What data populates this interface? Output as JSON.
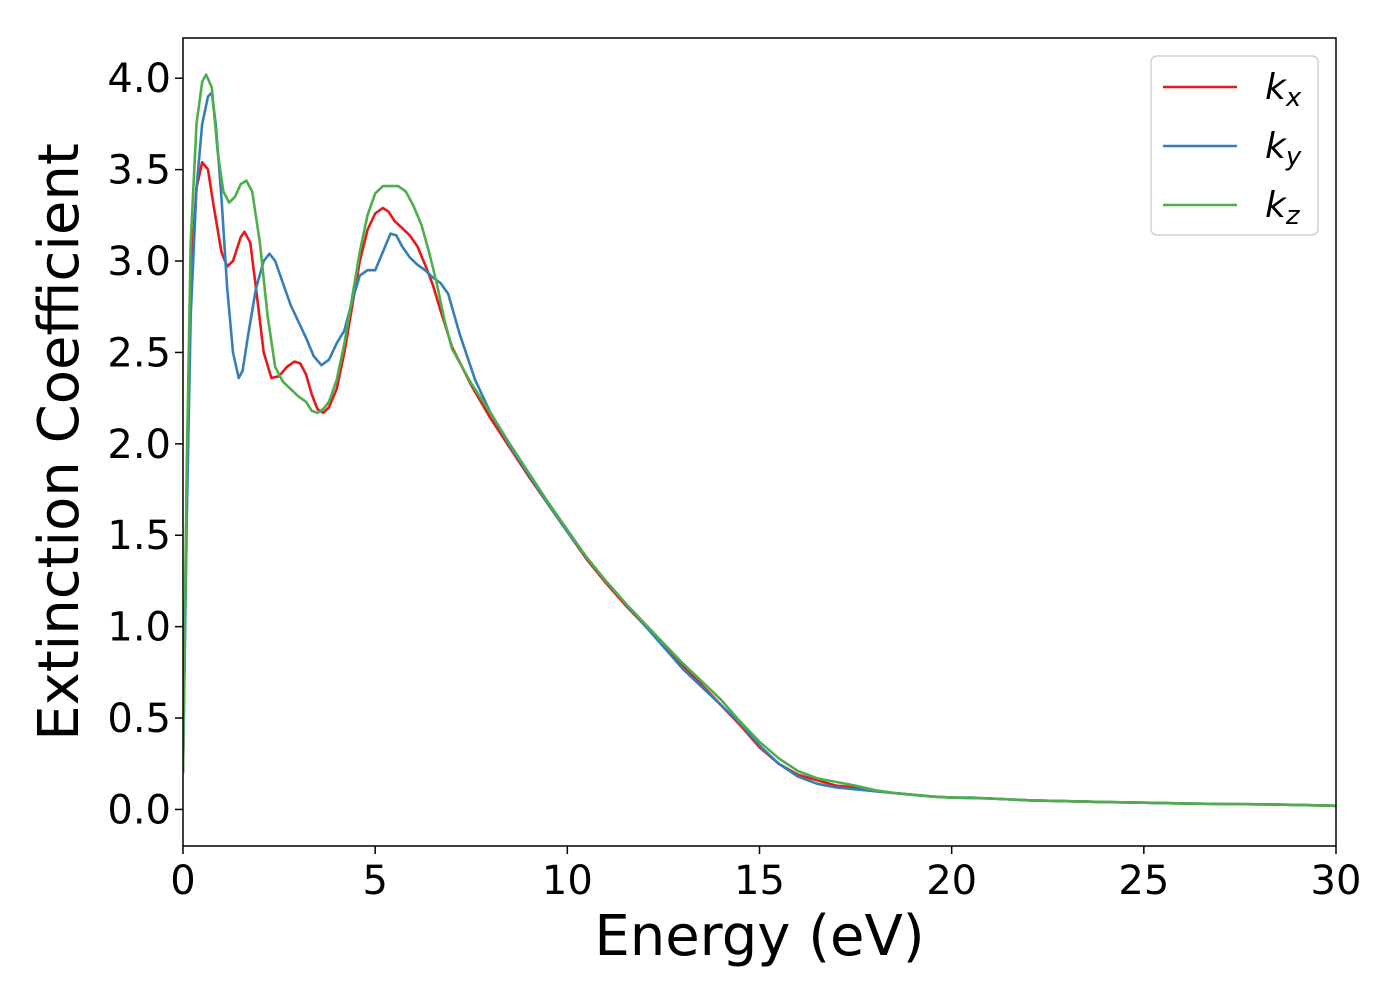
{
  "chart_data": {
    "type": "line",
    "title": "",
    "xlabel": "Energy (eV)",
    "ylabel": "Extinction Coefficient",
    "xlim": [
      0,
      30
    ],
    "ylim": [
      -0.2,
      4.22
    ],
    "xticks": [
      0,
      5,
      10,
      15,
      20,
      25,
      30
    ],
    "xtick_labels": [
      "0",
      "5",
      "10",
      "15",
      "20",
      "25",
      "30"
    ],
    "yticks": [
      0.0,
      0.5,
      1.0,
      1.5,
      2.0,
      2.5,
      3.0,
      3.5,
      4.0
    ],
    "ytick_labels": [
      "0.0",
      "0.5",
      "1.0",
      "1.5",
      "2.0",
      "2.5",
      "3.0",
      "3.5",
      "4.0"
    ],
    "grid": false,
    "legend_position": "top-right",
    "series": [
      {
        "name": "k",
        "subscript": "x",
        "color": "#e41a1c",
        "points": [
          [
            0,
            0.2
          ],
          [
            0.1,
            1.8
          ],
          [
            0.2,
            2.9
          ],
          [
            0.35,
            3.4
          ],
          [
            0.5,
            3.54
          ],
          [
            0.65,
            3.5
          ],
          [
            0.8,
            3.3
          ],
          [
            1.0,
            3.05
          ],
          [
            1.15,
            2.97
          ],
          [
            1.3,
            3.0
          ],
          [
            1.5,
            3.13
          ],
          [
            1.6,
            3.16
          ],
          [
            1.75,
            3.1
          ],
          [
            1.9,
            2.85
          ],
          [
            2.1,
            2.5
          ],
          [
            2.3,
            2.36
          ],
          [
            2.5,
            2.37
          ],
          [
            2.7,
            2.42
          ],
          [
            2.9,
            2.45
          ],
          [
            3.05,
            2.44
          ],
          [
            3.2,
            2.38
          ],
          [
            3.35,
            2.27
          ],
          [
            3.5,
            2.19
          ],
          [
            3.65,
            2.17
          ],
          [
            3.8,
            2.2
          ],
          [
            4.0,
            2.3
          ],
          [
            4.2,
            2.5
          ],
          [
            4.4,
            2.75
          ],
          [
            4.6,
            3.0
          ],
          [
            4.8,
            3.17
          ],
          [
            5.0,
            3.26
          ],
          [
            5.2,
            3.29
          ],
          [
            5.35,
            3.27
          ],
          [
            5.5,
            3.22
          ],
          [
            5.7,
            3.18
          ],
          [
            5.9,
            3.14
          ],
          [
            6.1,
            3.08
          ],
          [
            6.3,
            2.98
          ],
          [
            6.5,
            2.87
          ],
          [
            6.7,
            2.73
          ],
          [
            7.0,
            2.53
          ],
          [
            7.5,
            2.32
          ],
          [
            8.0,
            2.14
          ],
          [
            8.5,
            1.98
          ],
          [
            9.0,
            1.82
          ],
          [
            9.5,
            1.67
          ],
          [
            10.0,
            1.52
          ],
          [
            10.5,
            1.37
          ],
          [
            11.0,
            1.24
          ],
          [
            11.5,
            1.12
          ],
          [
            12.0,
            1.01
          ],
          [
            12.5,
            0.9
          ],
          [
            13.0,
            0.79
          ],
          [
            13.5,
            0.68
          ],
          [
            14.0,
            0.57
          ],
          [
            14.5,
            0.46
          ],
          [
            15.0,
            0.34
          ],
          [
            15.5,
            0.25
          ],
          [
            16.0,
            0.19
          ],
          [
            16.5,
            0.16
          ],
          [
            17.0,
            0.13
          ],
          [
            17.5,
            0.12
          ],
          [
            18.0,
            0.1
          ],
          [
            18.5,
            0.09
          ],
          [
            19.0,
            0.08
          ],
          [
            19.5,
            0.07
          ],
          [
            20.0,
            0.065
          ],
          [
            21.0,
            0.06
          ],
          [
            22.0,
            0.05
          ],
          [
            23.0,
            0.045
          ],
          [
            24.0,
            0.04
          ],
          [
            25.0,
            0.037
          ],
          [
            26.0,
            0.033
          ],
          [
            27.0,
            0.03
          ],
          [
            28.0,
            0.028
          ],
          [
            29.0,
            0.025
          ],
          [
            30.0,
            0.02
          ]
        ]
      },
      {
        "name": "k",
        "subscript": "y",
        "color": "#377eb8",
        "points": [
          [
            0,
            0.2
          ],
          [
            0.1,
            1.6
          ],
          [
            0.2,
            2.7
          ],
          [
            0.35,
            3.4
          ],
          [
            0.5,
            3.75
          ],
          [
            0.65,
            3.9
          ],
          [
            0.75,
            3.92
          ],
          [
            0.85,
            3.75
          ],
          [
            1.0,
            3.35
          ],
          [
            1.15,
            2.85
          ],
          [
            1.3,
            2.5
          ],
          [
            1.45,
            2.36
          ],
          [
            1.55,
            2.4
          ],
          [
            1.7,
            2.6
          ],
          [
            1.9,
            2.85
          ],
          [
            2.1,
            3.0
          ],
          [
            2.25,
            3.04
          ],
          [
            2.4,
            3.0
          ],
          [
            2.6,
            2.88
          ],
          [
            2.8,
            2.76
          ],
          [
            3.0,
            2.67
          ],
          [
            3.2,
            2.58
          ],
          [
            3.4,
            2.48
          ],
          [
            3.6,
            2.43
          ],
          [
            3.8,
            2.46
          ],
          [
            4.0,
            2.55
          ],
          [
            4.2,
            2.62
          ],
          [
            4.4,
            2.78
          ],
          [
            4.6,
            2.92
          ],
          [
            4.8,
            2.95
          ],
          [
            5.0,
            2.95
          ],
          [
            5.2,
            3.05
          ],
          [
            5.4,
            3.15
          ],
          [
            5.55,
            3.14
          ],
          [
            5.7,
            3.08
          ],
          [
            5.9,
            3.02
          ],
          [
            6.1,
            2.98
          ],
          [
            6.3,
            2.95
          ],
          [
            6.5,
            2.91
          ],
          [
            6.7,
            2.88
          ],
          [
            6.9,
            2.82
          ],
          [
            7.2,
            2.6
          ],
          [
            7.6,
            2.35
          ],
          [
            8.0,
            2.17
          ],
          [
            8.5,
            1.99
          ],
          [
            9.0,
            1.83
          ],
          [
            9.5,
            1.67
          ],
          [
            10.0,
            1.52
          ],
          [
            10.5,
            1.38
          ],
          [
            11.0,
            1.25
          ],
          [
            11.5,
            1.13
          ],
          [
            12.0,
            1.01
          ],
          [
            12.5,
            0.89
          ],
          [
            13.0,
            0.77
          ],
          [
            13.5,
            0.67
          ],
          [
            14.0,
            0.57
          ],
          [
            14.5,
            0.47
          ],
          [
            15.0,
            0.35
          ],
          [
            15.5,
            0.25
          ],
          [
            16.0,
            0.18
          ],
          [
            16.5,
            0.14
          ],
          [
            17.0,
            0.12
          ],
          [
            17.5,
            0.11
          ],
          [
            18.0,
            0.1
          ],
          [
            18.5,
            0.09
          ],
          [
            19.0,
            0.08
          ],
          [
            19.5,
            0.07
          ],
          [
            20.0,
            0.065
          ],
          [
            20.5,
            0.065
          ],
          [
            21.0,
            0.06
          ],
          [
            22.0,
            0.05
          ],
          [
            23.0,
            0.045
          ],
          [
            24.0,
            0.04
          ],
          [
            25.0,
            0.037
          ],
          [
            26.0,
            0.033
          ],
          [
            27.0,
            0.03
          ],
          [
            28.0,
            0.028
          ],
          [
            29.0,
            0.025
          ],
          [
            30.0,
            0.02
          ]
        ]
      },
      {
        "name": "k",
        "subscript": "z",
        "color": "#4daf4a",
        "points": [
          [
            0,
            0.2
          ],
          [
            0.1,
            1.9
          ],
          [
            0.2,
            3.1
          ],
          [
            0.35,
            3.75
          ],
          [
            0.5,
            3.98
          ],
          [
            0.6,
            4.02
          ],
          [
            0.75,
            3.95
          ],
          [
            0.9,
            3.6
          ],
          [
            1.05,
            3.38
          ],
          [
            1.2,
            3.32
          ],
          [
            1.35,
            3.35
          ],
          [
            1.5,
            3.42
          ],
          [
            1.65,
            3.44
          ],
          [
            1.8,
            3.38
          ],
          [
            2.0,
            3.1
          ],
          [
            2.2,
            2.7
          ],
          [
            2.4,
            2.42
          ],
          [
            2.6,
            2.34
          ],
          [
            2.8,
            2.3
          ],
          [
            3.0,
            2.26
          ],
          [
            3.2,
            2.23
          ],
          [
            3.35,
            2.18
          ],
          [
            3.5,
            2.17
          ],
          [
            3.65,
            2.19
          ],
          [
            3.8,
            2.23
          ],
          [
            4.0,
            2.35
          ],
          [
            4.2,
            2.55
          ],
          [
            4.4,
            2.8
          ],
          [
            4.6,
            3.05
          ],
          [
            4.8,
            3.25
          ],
          [
            5.0,
            3.37
          ],
          [
            5.2,
            3.41
          ],
          [
            5.4,
            3.41
          ],
          [
            5.6,
            3.41
          ],
          [
            5.8,
            3.38
          ],
          [
            6.0,
            3.3
          ],
          [
            6.2,
            3.2
          ],
          [
            6.4,
            3.05
          ],
          [
            6.6,
            2.88
          ],
          [
            6.8,
            2.68
          ],
          [
            7.0,
            2.52
          ],
          [
            7.5,
            2.33
          ],
          [
            8.0,
            2.17
          ],
          [
            8.5,
            2.0
          ],
          [
            9.0,
            1.84
          ],
          [
            9.5,
            1.68
          ],
          [
            10.0,
            1.53
          ],
          [
            10.5,
            1.38
          ],
          [
            11.0,
            1.25
          ],
          [
            11.5,
            1.13
          ],
          [
            12.0,
            1.02
          ],
          [
            12.5,
            0.91
          ],
          [
            13.0,
            0.8
          ],
          [
            13.5,
            0.7
          ],
          [
            14.0,
            0.6
          ],
          [
            14.5,
            0.48
          ],
          [
            15.0,
            0.37
          ],
          [
            15.5,
            0.28
          ],
          [
            16.0,
            0.21
          ],
          [
            16.5,
            0.17
          ],
          [
            17.0,
            0.15
          ],
          [
            17.5,
            0.13
          ],
          [
            18.0,
            0.105
          ],
          [
            18.5,
            0.09
          ],
          [
            19.0,
            0.08
          ],
          [
            19.5,
            0.07
          ],
          [
            20.0,
            0.065
          ],
          [
            21.0,
            0.06
          ],
          [
            22.0,
            0.05
          ],
          [
            23.0,
            0.045
          ],
          [
            24.0,
            0.04
          ],
          [
            25.0,
            0.037
          ],
          [
            26.0,
            0.033
          ],
          [
            27.0,
            0.03
          ],
          [
            28.0,
            0.028
          ],
          [
            29.0,
            0.025
          ],
          [
            30.0,
            0.02
          ]
        ]
      }
    ]
  }
}
